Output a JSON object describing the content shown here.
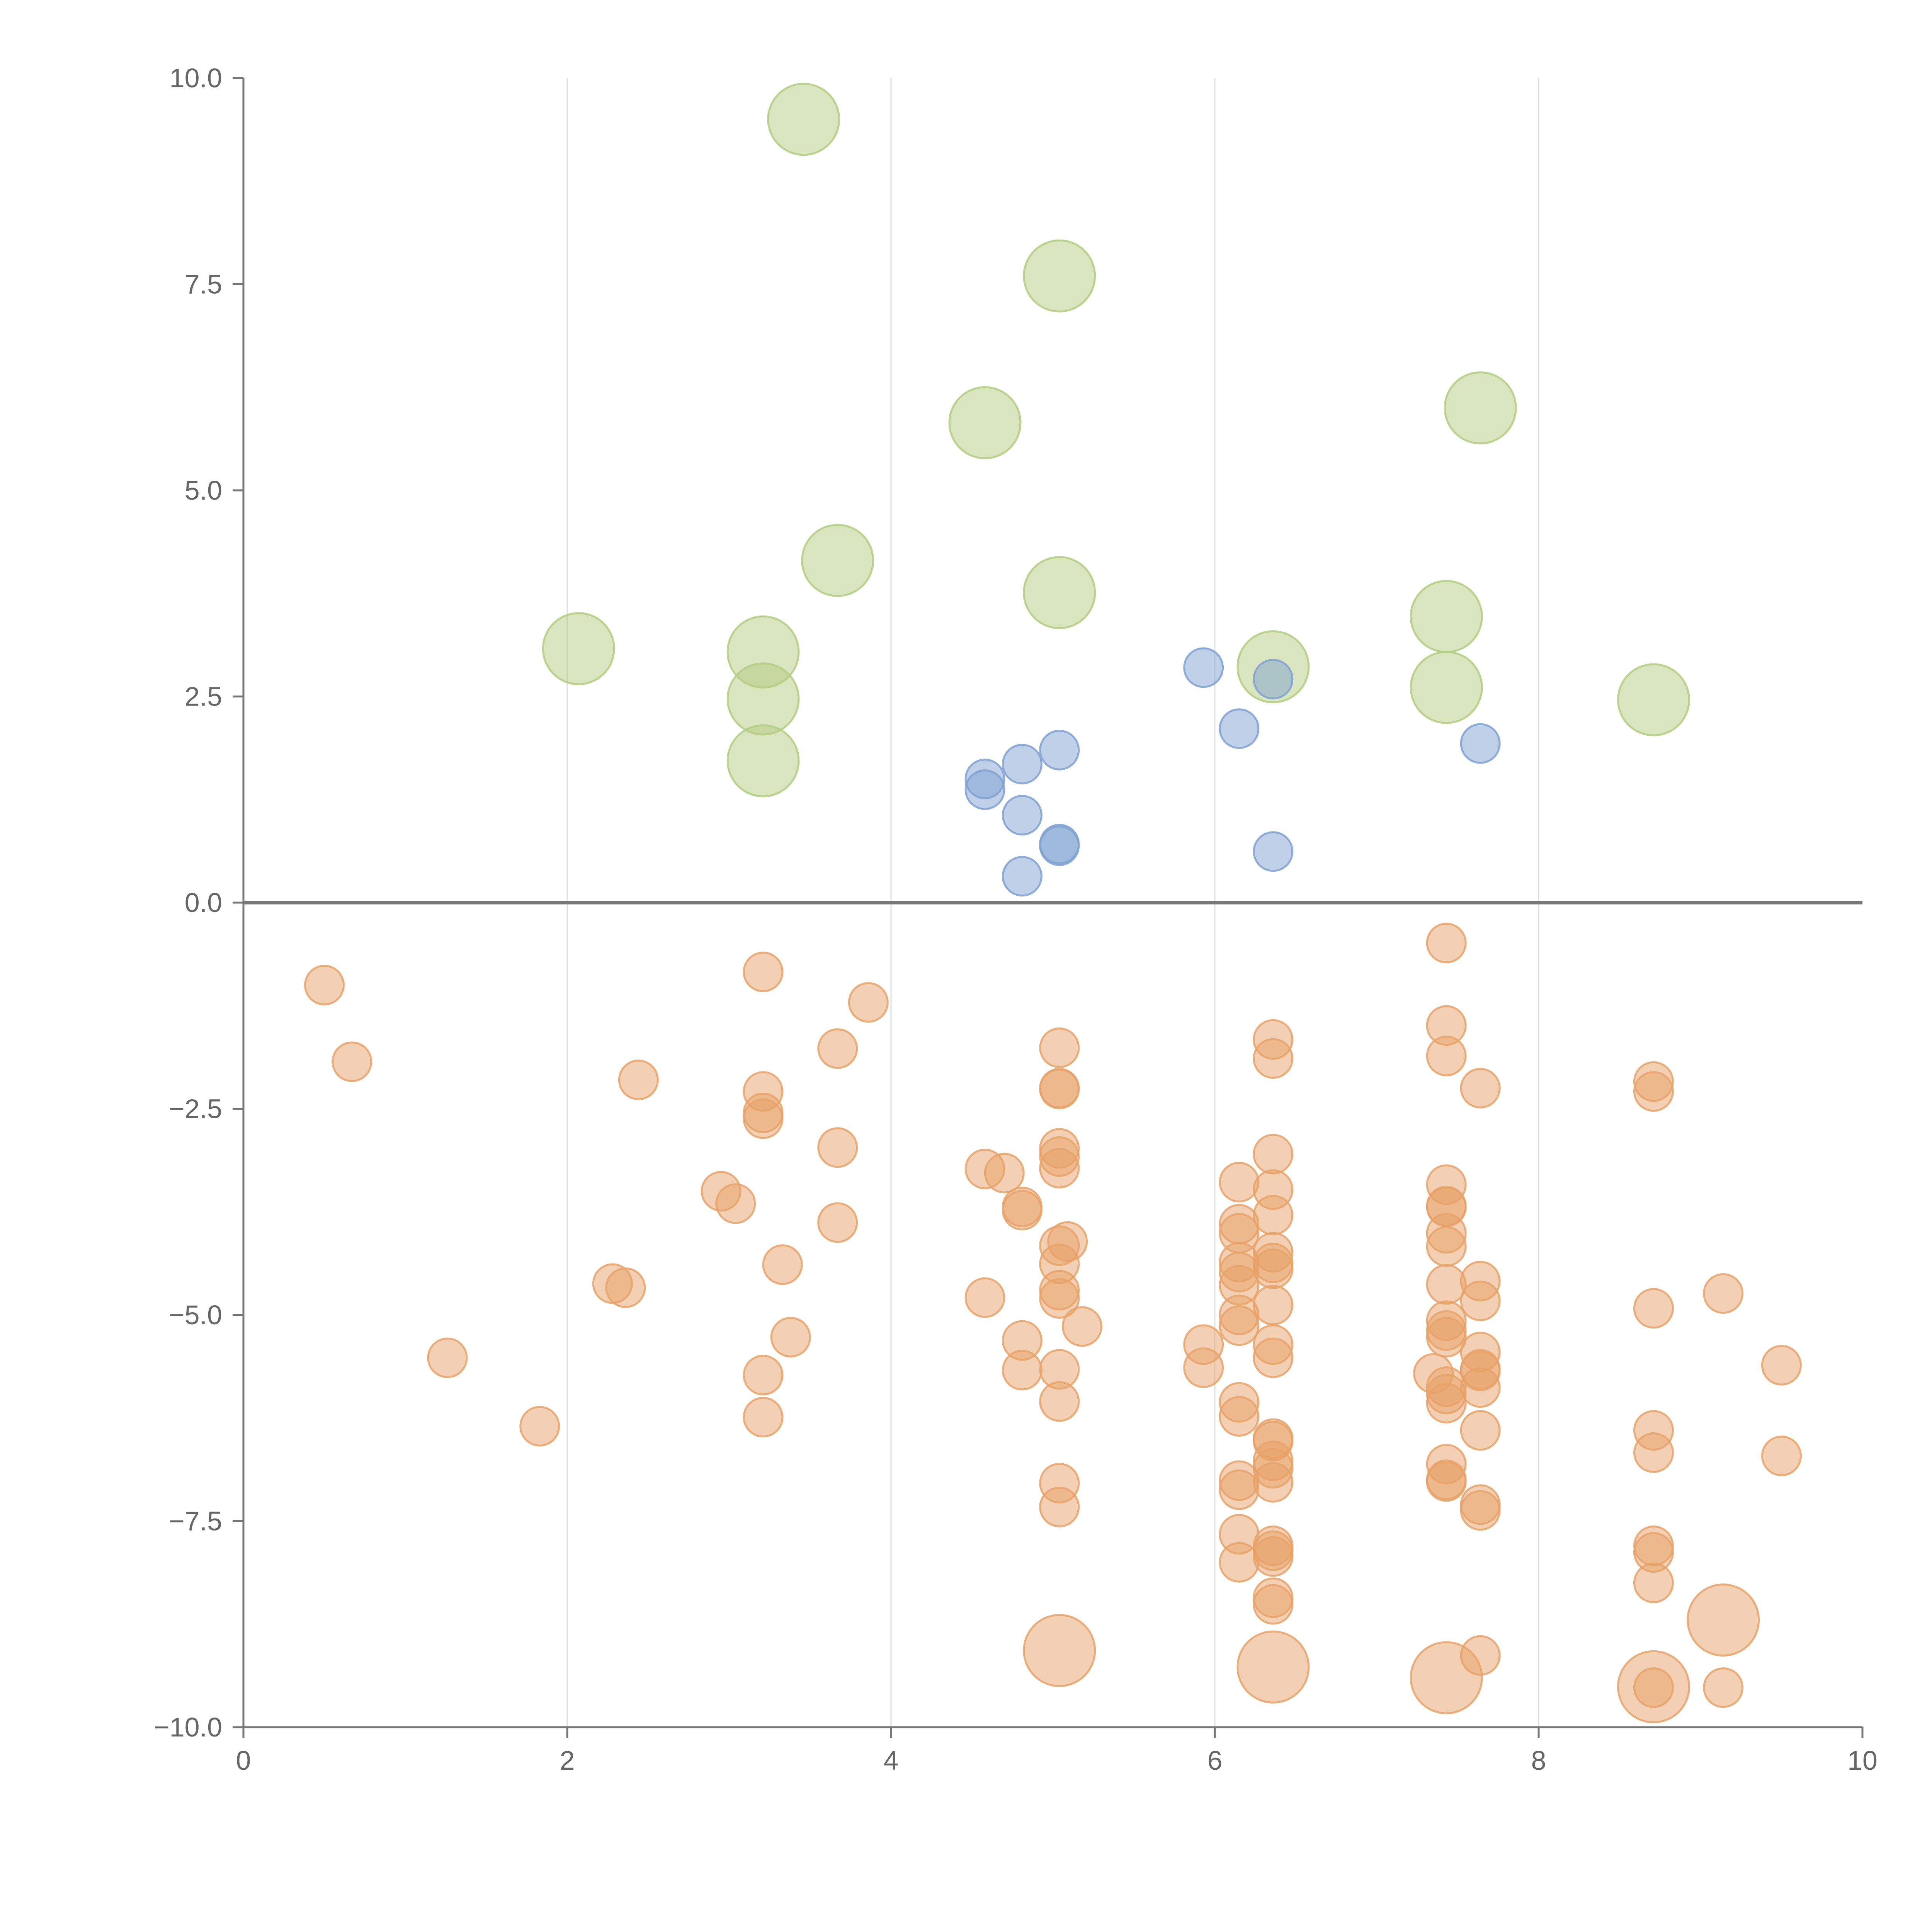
{
  "chart_data": {
    "type": "scatter",
    "title": "",
    "xlabel": "",
    "ylabel": "",
    "xlim": [
      0,
      10
    ],
    "ylim": [
      -10,
      10
    ],
    "x_ticks": [
      0,
      2,
      4,
      6,
      8,
      10
    ],
    "x_tick_labels": [
      "0",
      "2",
      "4",
      "6",
      "8",
      "10"
    ],
    "y_ticks": [
      10,
      7.5,
      5,
      2.5,
      0,
      -2.5,
      -5,
      -7.5,
      -10
    ],
    "y_tick_labels": [
      "10.0",
      "7.5",
      "5.0",
      "2.5",
      "0.0",
      "−2.5",
      "−5.0",
      "−7.5",
      "−10.0"
    ],
    "grid": "vertical",
    "zero_line": true,
    "series": [
      {
        "color": "#b3cc80",
        "size": "large",
        "points": [
          [
            3.46,
            9.5
          ],
          [
            5.04,
            7.6
          ],
          [
            4.58,
            5.82
          ],
          [
            7.64,
            6.0
          ],
          [
            3.67,
            4.15
          ],
          [
            5.04,
            3.76
          ],
          [
            2.07,
            3.08
          ],
          [
            3.21,
            3.04
          ],
          [
            3.21,
            2.47
          ],
          [
            3.21,
            1.72
          ],
          [
            6.36,
            2.86
          ],
          [
            7.43,
            3.47
          ],
          [
            7.43,
            2.61
          ],
          [
            8.71,
            2.46
          ]
        ]
      },
      {
        "color": "#7fa1d1",
        "size": "small",
        "points": [
          [
            5.93,
            2.85
          ],
          [
            6.15,
            2.11
          ],
          [
            6.36,
            2.71
          ],
          [
            7.64,
            1.93
          ],
          [
            4.58,
            1.5
          ],
          [
            4.58,
            1.37
          ],
          [
            4.81,
            1.68
          ],
          [
            5.04,
            1.85
          ],
          [
            4.81,
            1.06
          ],
          [
            5.04,
            0.71
          ],
          [
            5.04,
            0.69
          ],
          [
            4.81,
            0.32
          ],
          [
            6.36,
            0.62
          ]
        ]
      },
      {
        "color": "#e8a268",
        "size": "small",
        "points": [
          [
            0.5,
            -1.0
          ],
          [
            0.67,
            -1.93
          ],
          [
            1.26,
            -5.52
          ],
          [
            1.83,
            -6.35
          ],
          [
            2.28,
            -4.62
          ],
          [
            2.36,
            -4.67
          ],
          [
            2.44,
            -2.15
          ],
          [
            2.95,
            -3.5
          ],
          [
            3.04,
            -3.65
          ],
          [
            3.21,
            -0.84
          ],
          [
            3.21,
            -2.29
          ],
          [
            3.21,
            -2.55
          ],
          [
            3.21,
            -2.62
          ],
          [
            3.21,
            -5.73
          ],
          [
            3.21,
            -6.24
          ],
          [
            3.33,
            -4.39
          ],
          [
            3.38,
            -5.27
          ],
          [
            3.67,
            -1.77
          ],
          [
            3.67,
            -2.97
          ],
          [
            3.67,
            -3.88
          ],
          [
            3.86,
            -1.21
          ],
          [
            4.58,
            -3.23
          ],
          [
            4.58,
            -4.79
          ],
          [
            4.7,
            -3.28
          ],
          [
            4.81,
            -3.69
          ],
          [
            4.81,
            -3.73
          ],
          [
            4.81,
            -5.31
          ],
          [
            4.81,
            -5.67
          ],
          [
            5.04,
            -1.76
          ],
          [
            5.04,
            -2.25
          ],
          [
            5.04,
            -2.26
          ],
          [
            5.04,
            -2.98
          ],
          [
            5.04,
            -3.08
          ],
          [
            5.04,
            -3.22
          ],
          [
            5.04,
            -4.16
          ],
          [
            5.04,
            -4.38
          ],
          [
            5.04,
            -4.7
          ],
          [
            5.04,
            -4.8
          ],
          [
            5.04,
            -5.66
          ],
          [
            5.04,
            -6.05
          ],
          [
            5.04,
            -7.04
          ],
          [
            5.04,
            -7.33
          ],
          [
            5.09,
            -4.11
          ],
          [
            5.18,
            -5.14
          ],
          [
            5.93,
            -5.36
          ],
          [
            5.93,
            -5.64
          ],
          [
            6.15,
            -3.39
          ],
          [
            6.15,
            -3.9
          ],
          [
            6.15,
            -4.01
          ],
          [
            6.15,
            -4.36
          ],
          [
            6.15,
            -4.48
          ],
          [
            6.15,
            -4.64
          ],
          [
            6.15,
            -5.0
          ],
          [
            6.15,
            -5.13
          ],
          [
            6.15,
            -6.06
          ],
          [
            6.15,
            -6.23
          ],
          [
            6.15,
            -7.01
          ],
          [
            6.15,
            -7.12
          ],
          [
            6.15,
            -7.66
          ],
          [
            6.15,
            -8.0
          ],
          [
            6.36,
            -1.66
          ],
          [
            6.36,
            -1.89
          ],
          [
            6.36,
            -3.05
          ],
          [
            6.36,
            -3.48
          ],
          [
            6.36,
            -3.79
          ],
          [
            6.36,
            -4.24
          ],
          [
            6.36,
            -4.37
          ],
          [
            6.36,
            -4.44
          ],
          [
            6.36,
            -4.88
          ],
          [
            6.36,
            -5.36
          ],
          [
            6.36,
            -5.52
          ],
          [
            6.36,
            -6.5
          ],
          [
            6.36,
            -6.53
          ],
          [
            6.36,
            -6.77
          ],
          [
            6.36,
            -6.86
          ],
          [
            6.36,
            -7.03
          ],
          [
            6.36,
            -7.8
          ],
          [
            6.36,
            -7.86
          ],
          [
            6.36,
            -7.93
          ],
          [
            6.36,
            -8.43
          ],
          [
            6.36,
            -8.51
          ],
          [
            7.35,
            -5.71
          ],
          [
            7.43,
            -0.49
          ],
          [
            7.43,
            -1.49
          ],
          [
            7.43,
            -1.86
          ],
          [
            7.43,
            -3.42
          ],
          [
            7.43,
            -3.68
          ],
          [
            7.43,
            -3.69
          ],
          [
            7.43,
            -4.01
          ],
          [
            7.43,
            -4.17
          ],
          [
            7.43,
            -4.63
          ],
          [
            7.43,
            -5.07
          ],
          [
            7.43,
            -5.19
          ],
          [
            7.43,
            -5.27
          ],
          [
            7.43,
            -5.87
          ],
          [
            7.43,
            -5.96
          ],
          [
            7.43,
            -6.07
          ],
          [
            7.43,
            -6.81
          ],
          [
            7.43,
            -7.0
          ],
          [
            7.43,
            -7.02
          ],
          [
            7.64,
            -2.25
          ],
          [
            7.64,
            -4.59
          ],
          [
            7.64,
            -4.83
          ],
          [
            7.64,
            -5.45
          ],
          [
            7.64,
            -5.66
          ],
          [
            7.64,
            -5.68
          ],
          [
            7.64,
            -5.88
          ],
          [
            7.64,
            -6.4
          ],
          [
            7.64,
            -7.3
          ],
          [
            7.64,
            -7.37
          ],
          [
            7.64,
            -9.13
          ],
          [
            8.71,
            -2.17
          ],
          [
            8.71,
            -2.29
          ],
          [
            8.71,
            -4.92
          ],
          [
            8.71,
            -6.4
          ],
          [
            8.71,
            -6.67
          ],
          [
            8.71,
            -7.8
          ],
          [
            8.71,
            -7.88
          ],
          [
            8.71,
            -8.25
          ],
          [
            8.71,
            -9.52
          ],
          [
            9.14,
            -4.74
          ],
          [
            9.14,
            -9.52
          ],
          [
            9.5,
            -5.61
          ],
          [
            9.5,
            -6.71
          ]
        ]
      },
      {
        "color": "#e8a268",
        "size": "large",
        "points": [
          [
            5.04,
            -9.07
          ],
          [
            6.36,
            -9.27
          ],
          [
            7.43,
            -9.4
          ],
          [
            8.71,
            -9.51
          ],
          [
            9.14,
            -8.7
          ]
        ]
      }
    ]
  }
}
